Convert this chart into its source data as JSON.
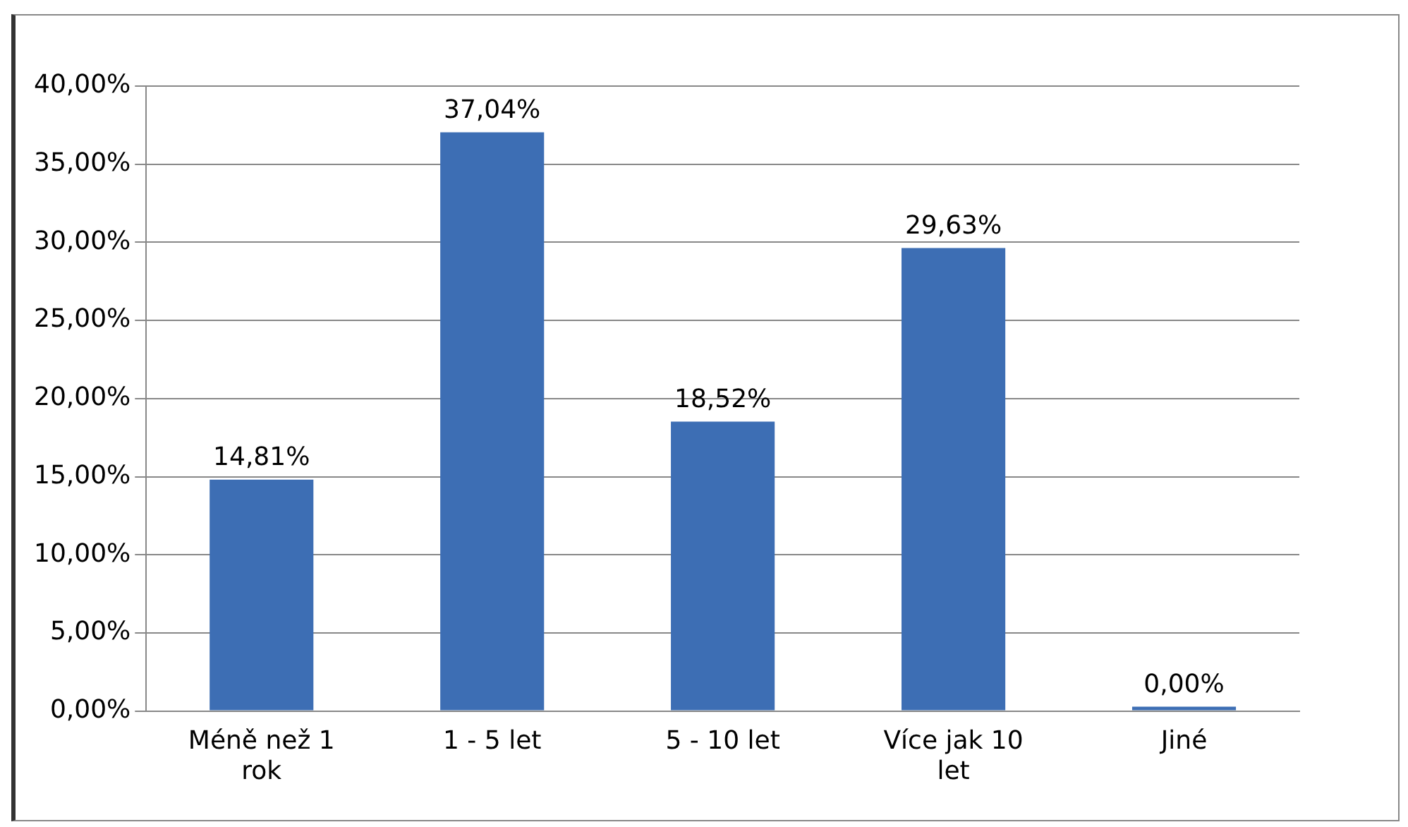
{
  "chart_data": {
    "type": "bar",
    "categories": [
      "Méně než 1 rok",
      "1 - 5 let",
      "5 - 10 let",
      "Více jak 10 let",
      "Jiné"
    ],
    "values": [
      14.81,
      37.04,
      18.52,
      29.63,
      0
    ],
    "value_labels": [
      "14,81%",
      "37,04%",
      "18,52%",
      "29,63%",
      "0,00%"
    ],
    "color": "#3d6eb4",
    "ylim": [
      0,
      40
    ],
    "yticks": [
      {
        "value": 0,
        "label": "0,00%"
      },
      {
        "value": 5,
        "label": "5,00%"
      },
      {
        "value": 10,
        "label": "10,00%"
      },
      {
        "value": 15,
        "label": "15,00%"
      },
      {
        "value": 20,
        "label": "20,00%"
      },
      {
        "value": 25,
        "label": "25,00%"
      },
      {
        "value": 30,
        "label": "30,00%"
      },
      {
        "value": 35,
        "label": "35,00%"
      },
      {
        "value": 40,
        "label": "40,00%"
      }
    ],
    "grid": "y"
  }
}
